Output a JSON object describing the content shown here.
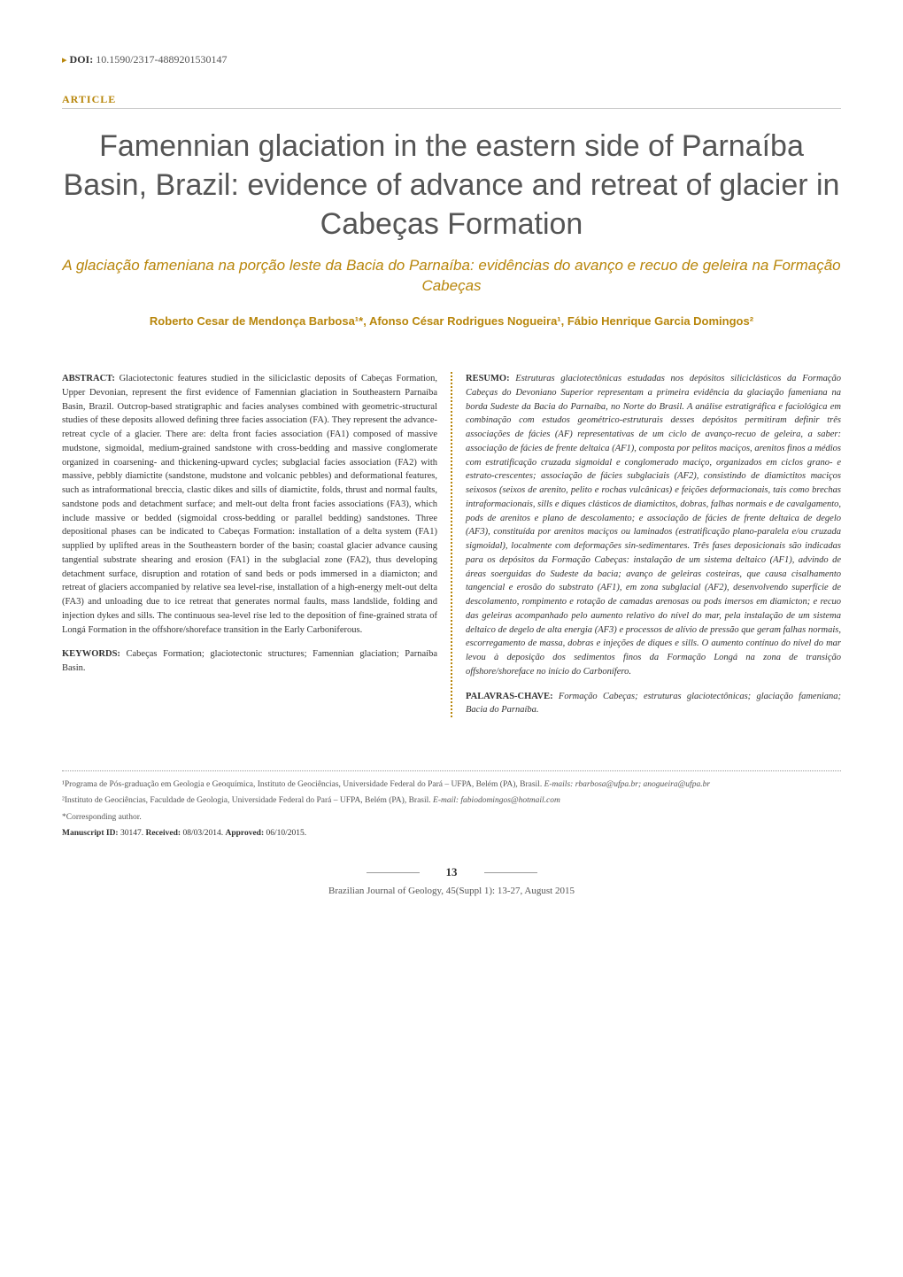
{
  "doi": {
    "marker": "▸",
    "label": "DOI:",
    "value": "10.1590/2317-4889201530147"
  },
  "article_label": "ARTICLE",
  "title": "Famennian glaciation in the eastern side of Parnaíba Basin, Brazil: evidence of advance and retreat of glacier in Cabeças Formation",
  "subtitle": "A glaciação fameniana na porção leste da Bacia do Parnaíba: evidências do avanço e recuo de geleira na Formação Cabeças",
  "authors": "Roberto Cesar de Mendonça Barbosa¹*, Afonso César Rodrigues Nogueira¹, Fábio Henrique Garcia Domingos²",
  "abstract_en": {
    "label": "ABSTRACT:",
    "text": " Glaciotectonic features studied in the siliciclastic deposits of Cabeças Formation, Upper Devonian, represent the first evidence of Famennian glaciation in Southeastern Parnaíba Basin, Brazil. Outcrop-based stratigraphic and facies analyses combined with geometric-structural studies of these deposits allowed defining three facies association (FA). They represent the advance-retreat cycle of a glacier. There are: delta front facies association (FA1) composed of massive mudstone, sigmoidal, medium-grained sandstone with cross-bedding and massive conglomerate organized in coarsening- and thickening-upward cycles; subglacial facies association (FA2) with massive, pebbly diamictite (sandstone, mudstone and volcanic pebbles) and deformational features, such as intraformational breccia, clastic dikes and sills of diamictite, folds, thrust and normal faults, sandstone pods and detachment surface; and melt-out delta front facies associations (FA3), which include massive or bedded (sigmoidal cross-bedding or parallel bedding) sandstones. Three depositional phases can be indicated to Cabeças Formation: installation of a delta system (FA1) supplied by uplifted areas in the Southeastern border of the basin; coastal glacier advance causing tangential substrate shearing and erosion (FA1) in the subglacial zone (FA2), thus developing detachment surface, disruption and rotation of sand beds or pods immersed in a diamicton; and retreat of glaciers accompanied by relative sea level-rise, installation of a high-energy melt-out delta (FA3) and unloading due to ice retreat that generates normal faults, mass landslide, folding and injection dykes and sills. The continuous sea-level rise led to the deposition of fine-grained strata of Longá Formation in the offshore/shoreface transition in the Early Carboniferous.",
    "keywords_label": "KEYWORDS:",
    "keywords": " Cabeças Formation; glaciotectonic structures; Famennian glaciation; Parnaíba Basin."
  },
  "abstract_pt": {
    "label": "RESUMO:",
    "text": " Estruturas glaciotectônicas estudadas nos depósitos siliciclásticos da Formação Cabeças do Devoniano Superior representam a primeira evidência da glaciação fameniana na borda Sudeste da Bacia do Parnaíba, no Norte do Brasil. A análise estratigráfica e faciológica em combinação com estudos geométrico-estruturais desses depósitos permitiram definir três associações de fácies (AF) representativas de um ciclo de avanço-recuo de geleira, a saber: associação de fácies de frente deltaica (AF1), composta por pelitos maciços, arenitos finos a médios com estratificação cruzada sigmoidal e conglomerado maciço, organizados em ciclos grano- e estrato-crescentes; associação de fácies subglaciais (AF2), consistindo de diamictitos maciços seixosos (seixos de arenito, pelito e rochas vulcânicas) e feições deformacionais, tais como brechas intraformacionais, sills e diques clásticos de diamictitos, dobras, falhas normais e de cavalgamento, pods de arenitos e plano de descolamento; e associação de fácies de frente deltaica de degelo (AF3), constituída por arenitos maciços ou laminados (estratificação plano-paralela e/ou cruzada sigmoidal), localmente com deformações sin-sedimentares. Três fases deposicionais são indicadas para os depósitos da Formação Cabeças: instalação de um sistema deltaico (AF1), advindo de áreas soerguidas do Sudeste da bacia; avanço de geleiras costeiras, que causa cisalhamento tangencial e erosão do substrato (AF1), em zona subglacial (AF2), desenvolvendo superfície de descolamento, rompimento e rotação de camadas arenosas ou pods imersos em diamicton; e recuo das geleiras acompanhado pelo aumento relativo do nível do mar, pela instalação de um sistema deltaico de degelo de alta energia (AF3) e processos de alívio de pressão que geram falhas normais, escorregamento de massa, dobras e injeções de diques e sills. O aumento contínuo do nível do mar levou à deposição dos sedimentos finos da Formação Longá na zona de transição offshore/shoreface no início do Carbonífero.",
    "keywords_label": "PALAVRAS-CHAVE:",
    "keywords": " Formação Cabeças; estruturas glaciotectônicas; glaciação fameniana; Bacia do Parnaíba."
  },
  "affiliations": [
    {
      "num": "¹",
      "text": "Programa de Pós-graduação em Geologia e Geoquímica, Instituto de Geociências, Universidade Federal do Pará – UFPA, Belém (PA), Brasil. ",
      "email_label": "E-mails: ",
      "email": "rbarbosa@ufpa.br; anogueira@ufpa.br"
    },
    {
      "num": "²",
      "text": "Instituto de Geociências, Faculdade de Geologia, Universidade Federal do Pará – UFPA, Belém (PA), Brasil. ",
      "email_label": "E-mail: ",
      "email": "fabiodomingos@hotmail.com"
    }
  ],
  "corresponding": "*Corresponding author.",
  "manuscript": {
    "id_label": "Manuscript ID:",
    "id": " 30147. ",
    "received_label": "Received:",
    "received": " 08/03/2014. ",
    "approved_label": "Approved:",
    "approved": " 06/10/2015."
  },
  "page_number": "13",
  "journal_ref": "Brazilian Journal of Geology, 45(Suppl 1): 13-27, August 2015",
  "colors": {
    "accent": "#b8860b",
    "text": "#333333",
    "muted": "#555555"
  }
}
